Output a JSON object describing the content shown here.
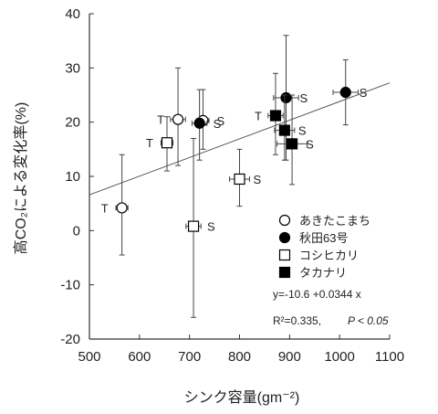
{
  "chart_data": {
    "type": "scatter",
    "xlabel": "シンク容量(gm⁻²)",
    "ylabel": "高CO₂による変化率(%)",
    "xlim": [
      500,
      1100
    ],
    "ylim": [
      -20,
      40
    ],
    "xticks": [
      500,
      600,
      700,
      800,
      900,
      1000,
      1100
    ],
    "yticks": [
      -20,
      -10,
      0,
      10,
      20,
      30,
      40
    ],
    "grid": false,
    "legend_position": "lower-right",
    "series": [
      {
        "name": "あきたこまち",
        "marker": "open-circle",
        "points": [
          {
            "x": 565,
            "y": 4.2,
            "xerr": 12,
            "ylow": -4.5,
            "yhigh": 14,
            "label": "T"
          },
          {
            "x": 677,
            "y": 20.5,
            "xerr": 15,
            "ylow": 12,
            "yhigh": 30,
            "label": "T"
          },
          {
            "x": 727,
            "y": 20.3,
            "xerr": 12,
            "ylow": 15,
            "yhigh": 26,
            "label": "S"
          }
        ]
      },
      {
        "name": "秋田63号",
        "marker": "filled-circle",
        "points": [
          {
            "x": 720,
            "y": 19.8,
            "xerr": 15,
            "ylow": 13,
            "yhigh": 26,
            "label": "S"
          },
          {
            "x": 893,
            "y": 24.5,
            "xerr": 25,
            "ylow": 13,
            "yhigh": 36,
            "label": "S"
          },
          {
            "x": 1012,
            "y": 25.5,
            "xerr": 25,
            "ylow": 19.5,
            "yhigh": 31.5,
            "label": "S"
          }
        ]
      },
      {
        "name": "コシヒカリ",
        "marker": "open-square",
        "points": [
          {
            "x": 655,
            "y": 16.2,
            "xerr": 12,
            "ylow": 11,
            "yhigh": 21,
            "label": "T"
          },
          {
            "x": 708,
            "y": 0.8,
            "xerr": 15,
            "ylow": -16,
            "yhigh": 17,
            "label": "S"
          },
          {
            "x": 800,
            "y": 9.5,
            "xerr": 20,
            "ylow": 4.5,
            "yhigh": 15,
            "label": "S"
          }
        ]
      },
      {
        "name": "タカナリ",
        "marker": "filled-square",
        "points": [
          {
            "x": 872,
            "y": 21.2,
            "xerr": 15,
            "ylow": 14,
            "yhigh": 29,
            "label": "T"
          },
          {
            "x": 890,
            "y": 18.5,
            "xerr": 20,
            "ylow": 13,
            "yhigh": 25,
            "label": "S"
          },
          {
            "x": 905,
            "y": 16,
            "xerr": 30,
            "ylow": 8.5,
            "yhigh": 25,
            "label": "S"
          }
        ]
      }
    ],
    "regression": {
      "intercept": -10.6,
      "slope": 0.0344,
      "equation_text": "y=-10.6 +0.0344 x",
      "r2_text": "R²=0.335,",
      "p_text": "P < 0.05"
    }
  }
}
